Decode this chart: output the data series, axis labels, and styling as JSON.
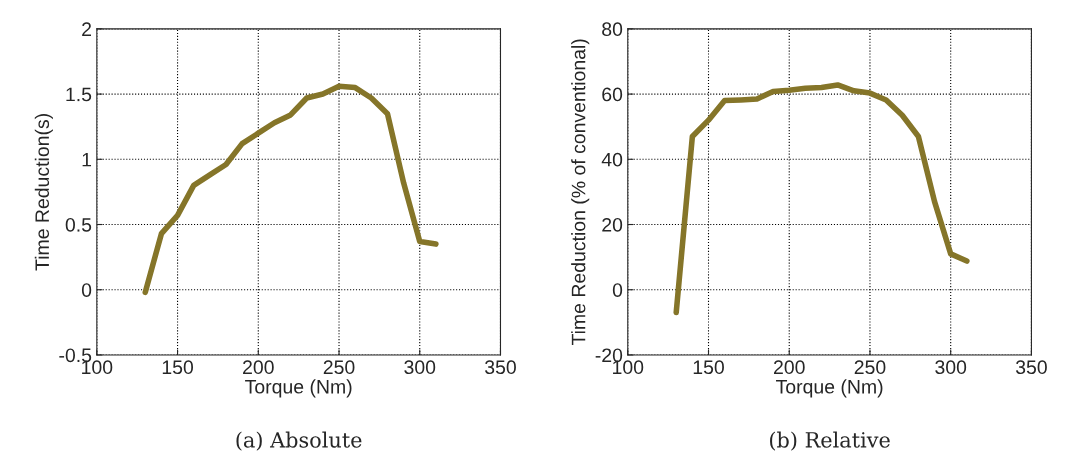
{
  "chart_data": [
    {
      "type": "line",
      "title": "(a) Absolute",
      "xlabel": "Torque (Nm)",
      "ylabel": "Time Reduction(s)",
      "x": [
        130,
        140,
        150,
        160,
        170,
        180,
        190,
        200,
        210,
        220,
        230,
        240,
        250,
        260,
        270,
        280,
        290,
        300,
        310
      ],
      "series": [
        {
          "color": "#857529",
          "values": [
            -0.02,
            0.43,
            0.57,
            0.8,
            0.88,
            0.96,
            1.12,
            1.2,
            1.28,
            1.34,
            1.47,
            1.5,
            1.56,
            1.55,
            1.47,
            1.35,
            0.82,
            0.37,
            0.35
          ]
        }
      ],
      "xlim": [
        100,
        350
      ],
      "xticks": [
        100,
        150,
        200,
        250,
        300,
        350
      ],
      "ylim": [
        -0.5,
        2
      ],
      "yticks": [
        -0.5,
        0,
        0.5,
        1,
        1.5,
        2
      ],
      "grid": true,
      "marker": "none",
      "line_style": "solid"
    },
    {
      "type": "line",
      "title": "(b) Relative",
      "xlabel": "Torque (Nm)",
      "ylabel": "Time Reduction (% of conventional)",
      "x": [
        130,
        140,
        150,
        160,
        170,
        180,
        190,
        200,
        210,
        220,
        230,
        240,
        250,
        260,
        270,
        280,
        290,
        300,
        310
      ],
      "series": [
        {
          "color": "#857529",
          "values": [
            -7,
            47,
            52,
            58,
            58.2,
            58.5,
            60.8,
            61.2,
            61.8,
            62,
            62.8,
            61,
            60.3,
            58.2,
            53.5,
            47,
            27,
            11,
            8.8
          ]
        }
      ],
      "xlim": [
        100,
        350
      ],
      "xticks": [
        100,
        150,
        200,
        250,
        300,
        350
      ],
      "ylim": [
        -20,
        80
      ],
      "yticks": [
        -20,
        0,
        20,
        40,
        60,
        80
      ],
      "grid": true,
      "marker": "none",
      "line_style": "solid"
    }
  ]
}
